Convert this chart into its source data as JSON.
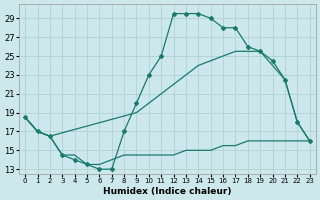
{
  "xlabel": "Humidex (Indice chaleur)",
  "bg_color": "#cce8ec",
  "grid_color": "#aacccc",
  "line_color": "#1a7a6e",
  "xlim": [
    -0.5,
    23.5
  ],
  "ylim": [
    12.5,
    30.5
  ],
  "xticks": [
    0,
    1,
    2,
    3,
    4,
    5,
    6,
    7,
    8,
    9,
    10,
    11,
    12,
    13,
    14,
    15,
    16,
    17,
    18,
    19,
    20,
    21,
    22,
    23
  ],
  "yticks": [
    13,
    15,
    17,
    19,
    21,
    23,
    25,
    27,
    29
  ],
  "line1_markers": {
    "x": [
      0,
      1,
      2,
      3,
      4,
      5,
      6,
      7,
      8,
      9,
      10,
      11,
      12,
      13,
      14,
      15,
      16,
      17,
      18,
      19,
      20,
      21,
      22,
      23
    ],
    "y": [
      18.5,
      17.0,
      16.5,
      14.5,
      14.0,
      13.5,
      13.0,
      13.0,
      17.0,
      20.0,
      23.0,
      25.0,
      29.5,
      29.5,
      29.5,
      29.0,
      28.0,
      28.0,
      26.0,
      25.5,
      24.5,
      22.5,
      18.0,
      16.0
    ]
  },
  "line2_diagonal": {
    "x": [
      0,
      1,
      2,
      9,
      10,
      11,
      12,
      13,
      14,
      15,
      16,
      17,
      18,
      19,
      20,
      21,
      22,
      23
    ],
    "y": [
      18.5,
      17.0,
      16.5,
      19.0,
      20.0,
      21.0,
      22.0,
      23.0,
      24.0,
      24.5,
      25.0,
      25.5,
      25.5,
      25.5,
      24.0,
      22.5,
      18.0,
      16.0
    ]
  },
  "line3_flat": {
    "x": [
      0,
      1,
      2,
      3,
      4,
      5,
      6,
      7,
      8,
      9,
      10,
      11,
      12,
      13,
      14,
      15,
      16,
      17,
      18,
      19,
      20,
      21,
      22,
      23
    ],
    "y": [
      18.5,
      17.0,
      16.5,
      14.5,
      14.5,
      13.5,
      13.5,
      14.0,
      14.5,
      14.5,
      14.5,
      14.5,
      14.5,
      15.0,
      15.0,
      15.0,
      15.5,
      15.5,
      16.0,
      16.0,
      16.0,
      16.0,
      16.0,
      16.0
    ]
  }
}
